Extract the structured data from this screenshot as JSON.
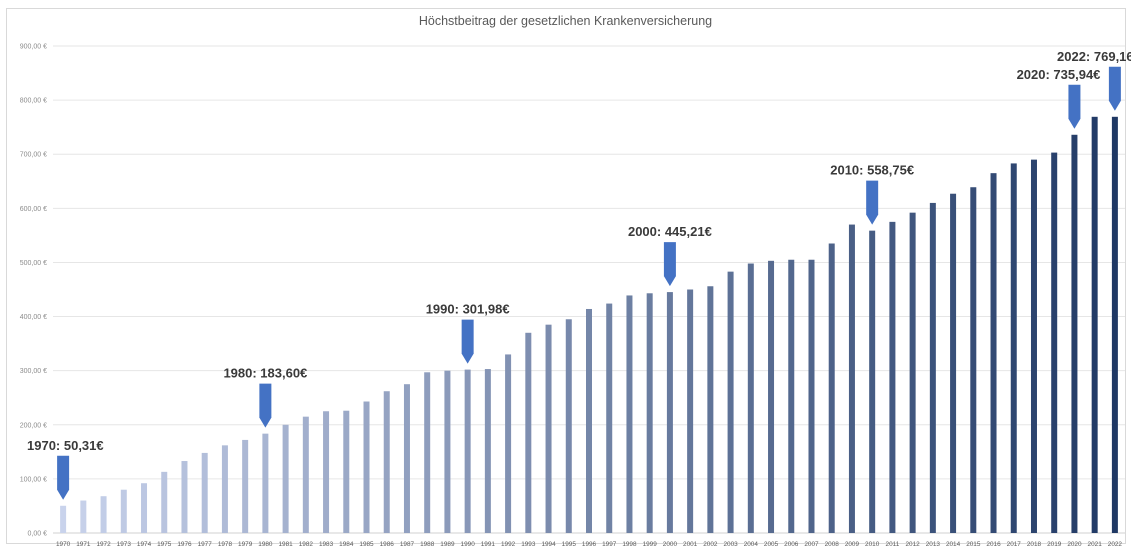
{
  "chart_data": {
    "type": "bar",
    "title": "Höchstbeitrag der gesetzlichen Krankenversicherung",
    "xlabel": "",
    "ylabel": "",
    "ylim": [
      0,
      900
    ],
    "y_ticks": [
      "0,00 €",
      "100,00 €",
      "200,00 €",
      "300,00 €",
      "400,00 €",
      "500,00 €",
      "600,00 €",
      "700,00 €",
      "800,00 €",
      "900,00 €"
    ],
    "grid": true,
    "legend": "none",
    "categories": [
      "1970",
      "1971",
      "1972",
      "1973",
      "1974",
      "1975",
      "1976",
      "1977",
      "1978",
      "1979",
      "1980",
      "1981",
      "1982",
      "1983",
      "1984",
      "1985",
      "1986",
      "1987",
      "1988",
      "1989",
      "1990",
      "1991",
      "1992",
      "1993",
      "1994",
      "1995",
      "1996",
      "1997",
      "1998",
      "1999",
      "2000",
      "2001",
      "2002",
      "2003",
      "2004",
      "2005",
      "2006",
      "2007",
      "2008",
      "2009",
      "2010",
      "2011",
      "2012",
      "2013",
      "2014",
      "2015",
      "2016",
      "2017",
      "2018",
      "2019",
      "2020",
      "2021",
      "2022"
    ],
    "values": [
      50.31,
      60,
      68,
      80,
      92,
      113,
      133,
      148,
      162,
      172,
      183.6,
      200,
      215,
      225,
      226,
      243,
      262,
      275,
      297,
      300,
      301.98,
      303,
      330,
      370,
      385,
      395,
      414,
      424,
      439,
      443,
      445.21,
      450,
      456,
      483,
      498,
      503,
      505,
      505,
      535,
      570,
      558.75,
      575,
      592,
      610,
      627,
      639,
      665,
      683,
      690,
      703,
      735.94,
      769.16,
      769.16
    ],
    "color_start": "#c9d3ec",
    "color_end": "#1f3864",
    "annotations": [
      {
        "index": 0,
        "label": "1970: 50,31€"
      },
      {
        "index": 10,
        "label": "1980: 183,60€"
      },
      {
        "index": 20,
        "label": "1990: 301,98€"
      },
      {
        "index": 30,
        "label": "2000: 445,21€"
      },
      {
        "index": 40,
        "label": "2010: 558,75€"
      },
      {
        "index": 50,
        "label": "2020: 735,94€"
      },
      {
        "index": 52,
        "label": "2022: 769,16€"
      }
    ],
    "arrow_color": "#4472c4"
  }
}
